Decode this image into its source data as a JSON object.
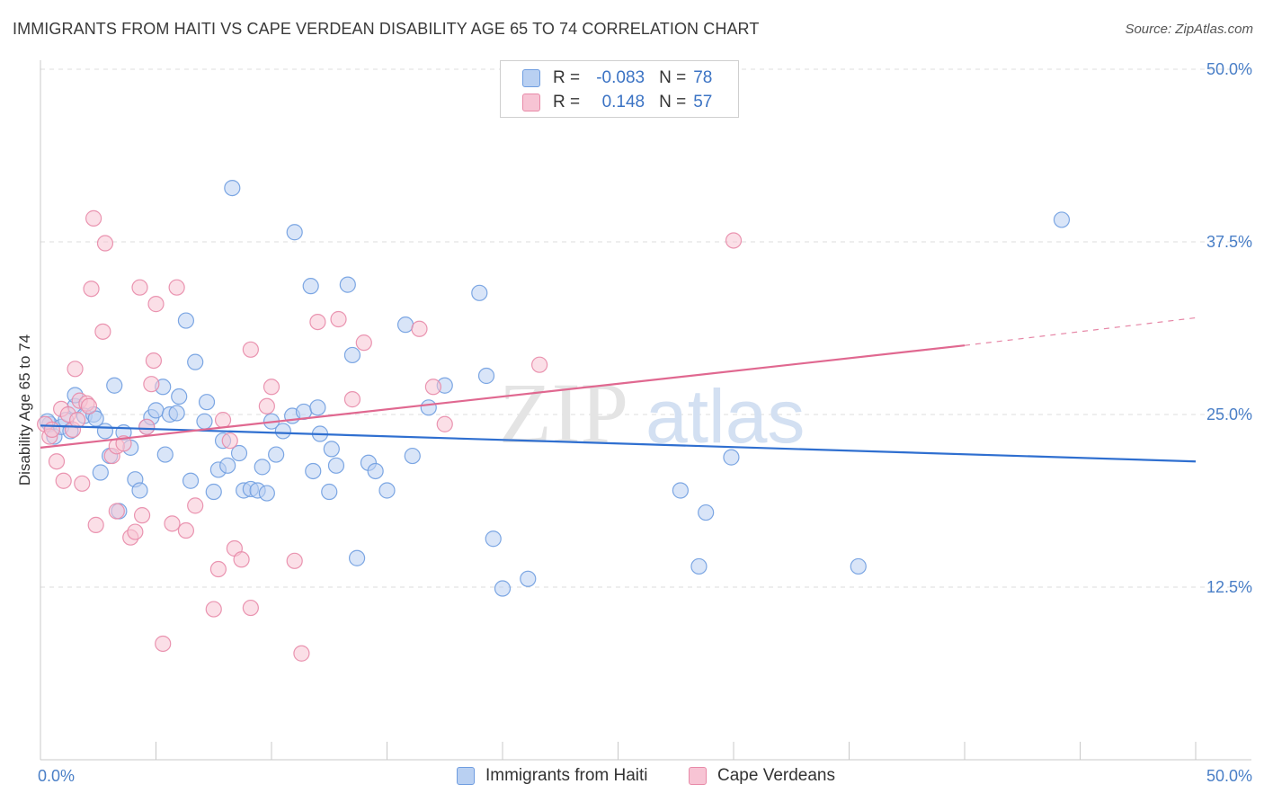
{
  "title": "IMMIGRANTS FROM HAITI VS CAPE VERDEAN DISABILITY AGE 65 TO 74 CORRELATION CHART",
  "source": "Source: ZipAtlas.com",
  "watermark": {
    "zip": "ZIP",
    "atlas": "atlas"
  },
  "legend": {
    "rows": [
      {
        "r_label": "R =",
        "r_value": "-0.083",
        "n_label": "N =",
        "n_value": "78",
        "fill": "#b9d0f2",
        "stroke": "#6f9de0"
      },
      {
        "r_label": "R =",
        "r_value": "0.148",
        "n_label": "N =",
        "n_value": "57",
        "fill": "#f7c4d4",
        "stroke": "#e88aa8"
      }
    ]
  },
  "bottom_legend": [
    {
      "label": "Immigrants from Haiti",
      "fill": "#b9d0f2",
      "stroke": "#6f9de0"
    },
    {
      "label": "Cape Verdeans",
      "fill": "#f7c4d4",
      "stroke": "#e88aa8"
    }
  ],
  "chart_data": {
    "type": "scatter",
    "title": "IMMIGRANTS FROM HAITI VS CAPE VERDEAN DISABILITY AGE 65 TO 74 CORRELATION CHART",
    "xlabel": "",
    "ylabel": "Disability Age 65 to 74",
    "xlim": [
      0,
      50
    ],
    "ylim": [
      0,
      50
    ],
    "x_tick_labels": [
      "0.0%",
      "50.0%"
    ],
    "y_ticks": [
      12.5,
      25.0,
      37.5,
      50.0
    ],
    "y_tick_labels": [
      "12.5%",
      "25.0%",
      "37.5%",
      "50.0%"
    ],
    "grid": true,
    "series": [
      {
        "name": "Immigrants from Haiti",
        "color": "#6f9de0",
        "fill": "#b9d0f2",
        "trend": {
          "x": [
            0,
            50
          ],
          "y": [
            24.2,
            21.6
          ],
          "color": "#2f6fd0"
        },
        "points": [
          [
            0.4,
            24.3
          ],
          [
            0.6,
            23.4
          ],
          [
            0.9,
            24.1
          ],
          [
            1.1,
            24.6
          ],
          [
            1.3,
            23.8
          ],
          [
            1.5,
            25.6
          ],
          [
            1.5,
            26.4
          ],
          [
            1.9,
            24.9
          ],
          [
            2.3,
            25.0
          ],
          [
            2.4,
            24.7
          ],
          [
            2.6,
            20.8
          ],
          [
            2.8,
            23.8
          ],
          [
            3.0,
            22.0
          ],
          [
            3.2,
            27.1
          ],
          [
            3.4,
            18.0
          ],
          [
            3.6,
            23.7
          ],
          [
            3.9,
            22.6
          ],
          [
            4.1,
            20.3
          ],
          [
            4.3,
            19.5
          ],
          [
            4.6,
            24.1
          ],
          [
            4.8,
            24.8
          ],
          [
            5.0,
            25.3
          ],
          [
            5.3,
            27.0
          ],
          [
            5.4,
            22.1
          ],
          [
            5.6,
            25.0
          ],
          [
            5.9,
            25.1
          ],
          [
            6.0,
            26.3
          ],
          [
            6.3,
            31.8
          ],
          [
            6.5,
            20.2
          ],
          [
            6.7,
            28.8
          ],
          [
            7.1,
            24.5
          ],
          [
            7.2,
            25.9
          ],
          [
            7.5,
            19.4
          ],
          [
            7.7,
            21.0
          ],
          [
            7.9,
            23.1
          ],
          [
            8.1,
            21.3
          ],
          [
            8.3,
            41.4
          ],
          [
            8.6,
            22.2
          ],
          [
            8.8,
            19.5
          ],
          [
            9.1,
            19.6
          ],
          [
            9.4,
            19.5
          ],
          [
            9.6,
            21.2
          ],
          [
            9.8,
            19.3
          ],
          [
            10.0,
            24.5
          ],
          [
            10.2,
            22.1
          ],
          [
            10.5,
            23.8
          ],
          [
            10.9,
            24.9
          ],
          [
            11.0,
            38.2
          ],
          [
            11.4,
            25.2
          ],
          [
            11.7,
            34.3
          ],
          [
            11.8,
            20.9
          ],
          [
            12.0,
            25.5
          ],
          [
            12.1,
            23.6
          ],
          [
            12.5,
            19.4
          ],
          [
            12.6,
            22.5
          ],
          [
            12.8,
            21.3
          ],
          [
            13.3,
            34.4
          ],
          [
            13.5,
            29.3
          ],
          [
            13.7,
            14.6
          ],
          [
            14.2,
            21.5
          ],
          [
            14.5,
            20.9
          ],
          [
            15.0,
            19.5
          ],
          [
            15.8,
            31.5
          ],
          [
            16.1,
            22.0
          ],
          [
            16.8,
            25.5
          ],
          [
            17.5,
            27.1
          ],
          [
            19.0,
            33.8
          ],
          [
            19.3,
            27.8
          ],
          [
            19.6,
            16.0
          ],
          [
            20.0,
            12.4
          ],
          [
            21.1,
            13.1
          ],
          [
            27.7,
            19.5
          ],
          [
            28.5,
            14.0
          ],
          [
            28.8,
            17.9
          ],
          [
            29.9,
            21.9
          ],
          [
            35.4,
            14.0
          ],
          [
            44.2,
            39.1
          ],
          [
            0.3,
            24.5
          ]
        ]
      },
      {
        "name": "Cape Verdeans",
        "color": "#e88aa8",
        "fill": "#f7c4d4",
        "trend": {
          "x": [
            0,
            40
          ],
          "y": [
            22.6,
            30.0
          ],
          "dashed_to": [
            50,
            32.0
          ],
          "color": "#e06890"
        },
        "points": [
          [
            0.2,
            24.3
          ],
          [
            0.4,
            23.4
          ],
          [
            0.7,
            21.6
          ],
          [
            0.9,
            25.4
          ],
          [
            1.0,
            20.2
          ],
          [
            1.2,
            25.0
          ],
          [
            1.4,
            23.9
          ],
          [
            1.5,
            28.3
          ],
          [
            1.7,
            26.0
          ],
          [
            1.8,
            20.0
          ],
          [
            2.0,
            25.8
          ],
          [
            2.1,
            25.6
          ],
          [
            2.2,
            34.1
          ],
          [
            2.3,
            39.2
          ],
          [
            2.4,
            17.0
          ],
          [
            2.7,
            31.0
          ],
          [
            2.8,
            37.4
          ],
          [
            3.1,
            22.0
          ],
          [
            3.3,
            18.0
          ],
          [
            3.3,
            22.7
          ],
          [
            3.6,
            22.9
          ],
          [
            3.9,
            16.1
          ],
          [
            4.1,
            16.5
          ],
          [
            4.3,
            34.2
          ],
          [
            4.4,
            17.7
          ],
          [
            4.6,
            24.1
          ],
          [
            4.8,
            27.2
          ],
          [
            4.9,
            28.9
          ],
          [
            5.0,
            33.0
          ],
          [
            5.3,
            8.4
          ],
          [
            5.7,
            17.1
          ],
          [
            5.9,
            34.2
          ],
          [
            6.3,
            16.6
          ],
          [
            6.7,
            18.4
          ],
          [
            7.5,
            10.9
          ],
          [
            7.7,
            13.8
          ],
          [
            7.9,
            24.6
          ],
          [
            8.2,
            23.1
          ],
          [
            8.4,
            15.3
          ],
          [
            8.7,
            14.5
          ],
          [
            9.1,
            29.7
          ],
          [
            9.1,
            11.0
          ],
          [
            9.8,
            25.6
          ],
          [
            10.0,
            27.0
          ],
          [
            11.0,
            14.4
          ],
          [
            11.3,
            7.7
          ],
          [
            12.0,
            31.7
          ],
          [
            12.9,
            31.9
          ],
          [
            13.5,
            26.1
          ],
          [
            14.0,
            30.2
          ],
          [
            16.4,
            31.2
          ],
          [
            17.0,
            27.0
          ],
          [
            17.5,
            24.3
          ],
          [
            21.6,
            28.6
          ],
          [
            30.0,
            37.6
          ],
          [
            0.5,
            23.9
          ],
          [
            1.6,
            24.6
          ]
        ]
      }
    ]
  }
}
